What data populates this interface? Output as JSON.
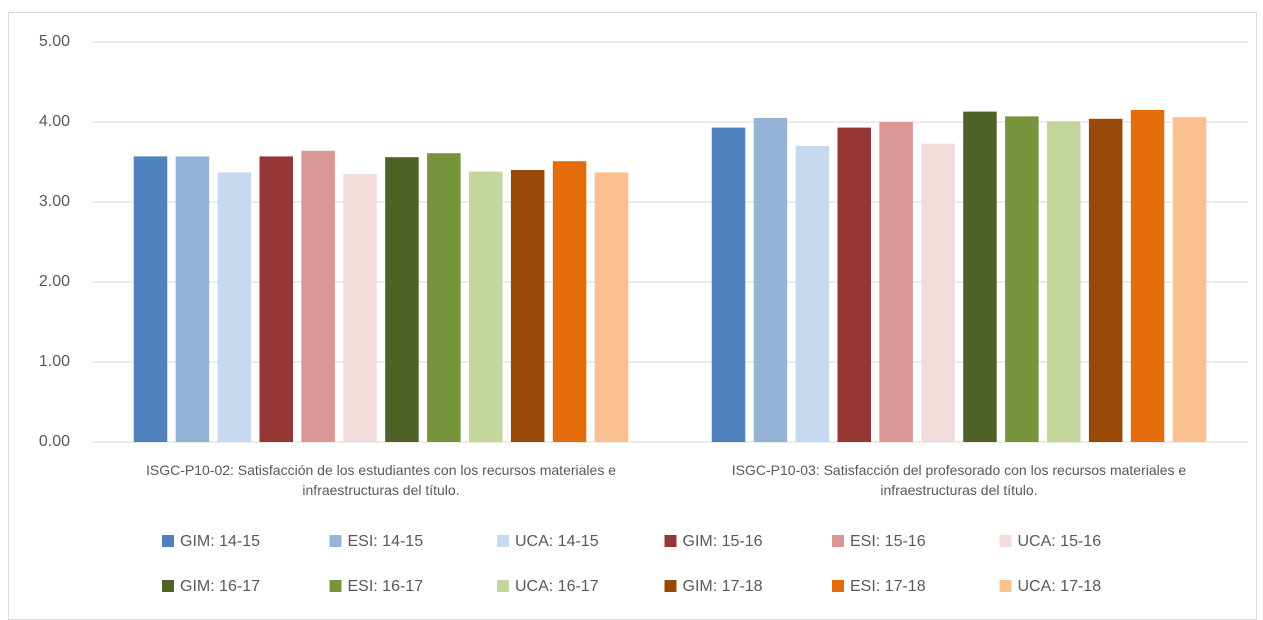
{
  "chart_data": {
    "type": "bar",
    "categories": [
      "ISGC-P10-02: Satisfacción de los estudiantes con los recursos materiales e infraestructuras del título.",
      "ISGC-P10-03: Satisfacción del profesorado con los recursos materiales e infraestructuras del título."
    ],
    "series": [
      {
        "name": "GIM: 14-15",
        "color": "#4f81bd",
        "values": [
          3.57,
          3.93
        ]
      },
      {
        "name": "ESI: 14-15",
        "color": "#95b3d7",
        "values": [
          3.57,
          4.05
        ]
      },
      {
        "name": "UCA: 14-15",
        "color": "#c6d9f1",
        "values": [
          3.37,
          3.7
        ]
      },
      {
        "name": "GIM: 15-16",
        "color": "#953735",
        "values": [
          3.57,
          3.93
        ]
      },
      {
        "name": "ESI: 15-16",
        "color": "#d99694",
        "values": [
          3.64,
          4.0
        ]
      },
      {
        "name": "UCA: 15-16",
        "color": "#f2dcdb",
        "values": [
          3.35,
          3.73
        ]
      },
      {
        "name": "GIM: 16-17",
        "color": "#4f6228",
        "values": [
          3.56,
          4.13
        ]
      },
      {
        "name": "ESI: 16-17",
        "color": "#77933c",
        "values": [
          3.61,
          4.07
        ]
      },
      {
        "name": "UCA: 16-17",
        "color": "#c3d69b",
        "values": [
          3.38,
          4.01
        ]
      },
      {
        "name": "GIM: 17-18",
        "color": "#984807",
        "values": [
          3.4,
          4.04
        ]
      },
      {
        "name": "ESI: 17-18",
        "color": "#e46c0a",
        "values": [
          3.51,
          4.15
        ]
      },
      {
        "name": "UCA: 17-18",
        "color": "#fac090",
        "values": [
          3.37,
          4.06
        ]
      }
    ],
    "ylim": [
      0,
      5
    ],
    "yticks": [
      {
        "value": 0,
        "label": "0.00"
      },
      {
        "value": 1,
        "label": "1.00"
      },
      {
        "value": 2,
        "label": "2.00"
      },
      {
        "value": 3,
        "label": "3.00"
      },
      {
        "value": 4,
        "label": "4.00"
      },
      {
        "value": 5,
        "label": "5.00"
      }
    ],
    "grid": true,
    "legend": "bottom"
  }
}
